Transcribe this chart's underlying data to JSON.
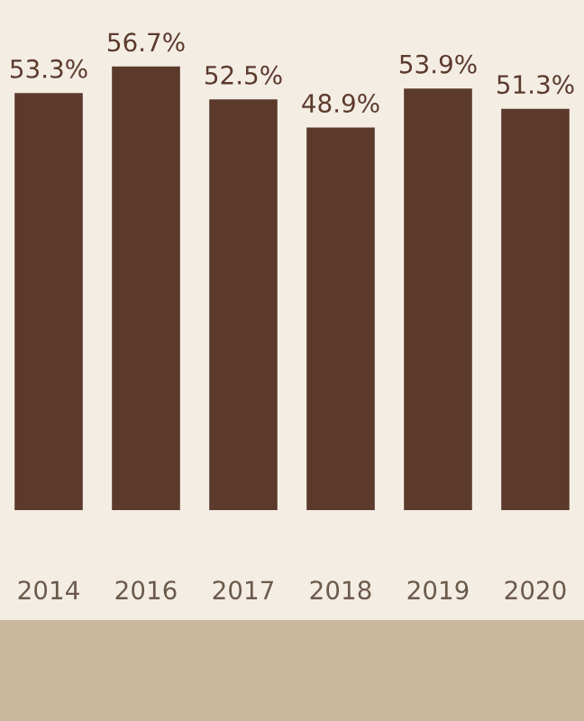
{
  "chart_data": {
    "type": "bar",
    "categories": [
      "2014",
      "2016",
      "2017",
      "2018",
      "2019",
      "2020"
    ],
    "values": [
      53.3,
      56.7,
      52.5,
      48.9,
      53.9,
      51.3
    ],
    "value_labels": [
      "53.3%",
      "56.7%",
      "52.5%",
      "48.9%",
      "53.9%",
      "51.3%"
    ],
    "color": "#5b3a2c",
    "grid": false,
    "legend": false
  }
}
